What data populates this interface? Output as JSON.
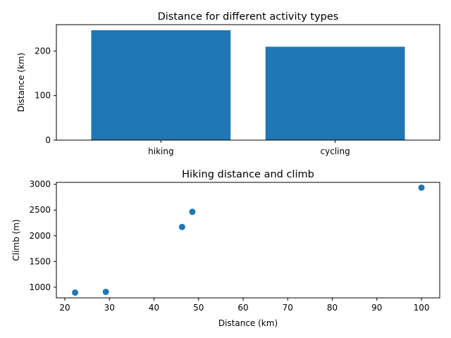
{
  "colors": {
    "series": "#1f77b4",
    "axes": "#000000",
    "background": "#ffffff"
  },
  "chart_data": [
    {
      "type": "bar",
      "title": "Distance for different activity types",
      "xlabel": "",
      "ylabel": "Distance (km)",
      "categories": [
        "hiking",
        "cycling"
      ],
      "values": [
        246.5,
        209.5
      ],
      "ylim": [
        0,
        259
      ],
      "yticks": [
        0,
        100,
        200
      ],
      "grid": false,
      "legend": "none"
    },
    {
      "type": "scatter",
      "title": "Hiking distance and climb",
      "xlabel": "Distance (km)",
      "ylabel": "Climb (m)",
      "x": [
        22.3,
        29.2,
        46.3,
        48.6,
        100.0
      ],
      "y": [
        895,
        910,
        2170,
        2465,
        2935
      ],
      "xlim": [
        18.1,
        104.1
      ],
      "ylim": [
        793,
        3037
      ],
      "xticks": [
        20,
        30,
        40,
        50,
        60,
        70,
        80,
        90,
        100
      ],
      "yticks": [
        1000,
        1500,
        2000,
        2500,
        3000
      ],
      "grid": false,
      "legend": "none"
    }
  ]
}
